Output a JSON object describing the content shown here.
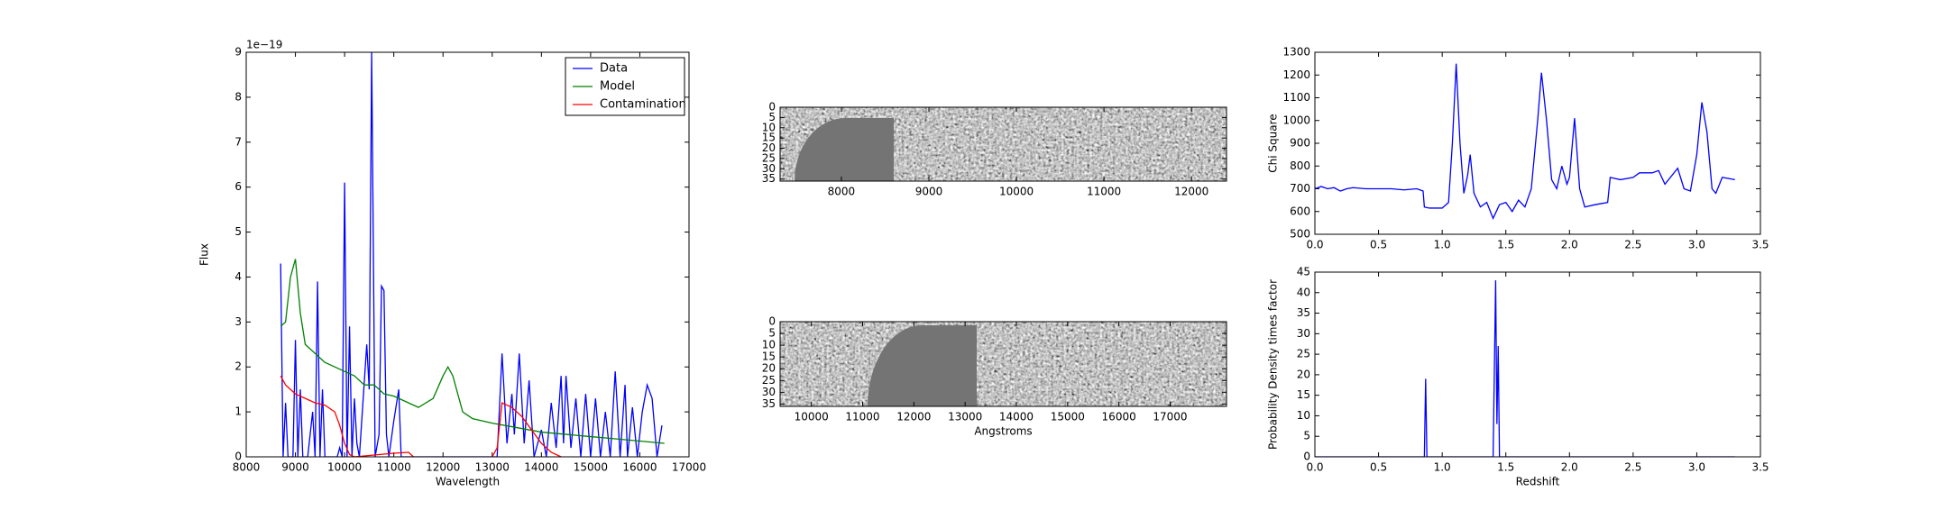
{
  "chart_data": [
    {
      "type": "line",
      "xlabel": "Wavelength",
      "ylabel": "Flux",
      "y_offset_label": "1e−19",
      "xlim": [
        8000,
        17000
      ],
      "xticks": [
        8000,
        9000,
        10000,
        11000,
        12000,
        13000,
        14000,
        15000,
        16000,
        17000
      ],
      "ylim": [
        0,
        9
      ],
      "yticks": [
        0,
        1,
        2,
        3,
        4,
        5,
        6,
        7,
        8,
        9
      ],
      "legend": "upper right",
      "series": [
        {
          "name": "Data",
          "color": "#0000ff",
          "x": [
            8700,
            8750,
            8800,
            8850,
            8950,
            9000,
            9050,
            9100,
            9150,
            9250,
            9350,
            9400,
            9450,
            9500,
            9550,
            9600,
            9850,
            9900,
            9950,
            10000,
            10050,
            10100,
            10150,
            10200,
            10250,
            10300,
            10450,
            10500,
            10550,
            10620,
            10700,
            10750,
            10800,
            10850,
            10900,
            11000,
            11100,
            11150,
            13100,
            13200,
            13300,
            13400,
            13450,
            13550,
            13650,
            13750,
            13850,
            14000,
            14100,
            14200,
            14300,
            14400,
            14450,
            14500,
            14600,
            14700,
            14800,
            14900,
            15000,
            15100,
            15200,
            15300,
            15400,
            15500,
            15600,
            15700,
            15750,
            15850,
            15950,
            16050,
            16150,
            16250,
            16350,
            16450
          ],
          "values": [
            4.3,
            0,
            1.2,
            0,
            0,
            2.6,
            0,
            1.5,
            0,
            0,
            1.0,
            0,
            3.9,
            0,
            1.5,
            0,
            0,
            0.2,
            0,
            6.1,
            0,
            2.9,
            0,
            1.3,
            0.3,
            0,
            2.5,
            1.5,
            9.0,
            0,
            0.5,
            3.8,
            3.7,
            0.5,
            0,
            0.8,
            1.5,
            0,
            0,
            2.3,
            0.3,
            1.4,
            0.5,
            2.3,
            0.3,
            1.7,
            0,
            0.6,
            0,
            1.2,
            0.2,
            1.8,
            0.3,
            1.8,
            0.2,
            1.3,
            0,
            1.4,
            0,
            1.3,
            0,
            1.0,
            0,
            1.9,
            0,
            1.6,
            0,
            1.1,
            0,
            1.0,
            1.6,
            1.3,
            0,
            0.7
          ]
        },
        {
          "name": "Model",
          "color": "#008000",
          "x": [
            8700,
            8800,
            8900,
            9000,
            9100,
            9200,
            9300,
            9400,
            9500,
            9600,
            9800,
            10000,
            10200,
            10400,
            10600,
            10800,
            11000,
            11300,
            11500,
            11800,
            12000,
            12100,
            12200,
            12400,
            12600,
            13000,
            13500,
            14000,
            14500,
            15000,
            15500,
            16000,
            16500
          ],
          "values": [
            2.9,
            3.0,
            4.0,
            4.4,
            3.2,
            2.5,
            2.4,
            2.3,
            2.2,
            2.1,
            2.0,
            1.9,
            1.8,
            1.6,
            1.6,
            1.4,
            1.35,
            1.2,
            1.1,
            1.3,
            1.8,
            2.0,
            1.8,
            1.0,
            0.85,
            0.75,
            0.65,
            0.55,
            0.5,
            0.45,
            0.4,
            0.35,
            0.3
          ]
        },
        {
          "name": "Contamination",
          "color": "#ff0000",
          "x": [
            8700,
            8800,
            9000,
            9200,
            9400,
            9600,
            9800,
            9900,
            10000,
            10100,
            10200,
            10700,
            11000,
            11300,
            11400,
            12000,
            13000,
            13100,
            13200,
            13400,
            13600,
            13800,
            14000,
            14200,
            14400
          ],
          "values": [
            1.8,
            1.6,
            1.4,
            1.3,
            1.2,
            1.15,
            1.0,
            0.7,
            0.3,
            0.05,
            0,
            0.05,
            0.08,
            0.1,
            0,
            null,
            0,
            0.2,
            1.2,
            1.1,
            0.9,
            0.6,
            0.3,
            0.1,
            0
          ]
        }
      ]
    },
    {
      "type": "image",
      "xlim": [
        7300,
        12400
      ],
      "xticks": [
        8000,
        9000,
        10000,
        11000,
        12000
      ],
      "ylim": [
        36,
        0
      ],
      "yticks": [
        0,
        5,
        10,
        15,
        20,
        25,
        30,
        35
      ]
    },
    {
      "type": "image",
      "xlabel": "Angstroms",
      "xlim": [
        9390,
        18100
      ],
      "xticks": [
        10000,
        11000,
        12000,
        13000,
        14000,
        15000,
        16000,
        17000
      ],
      "ylim": [
        36,
        0
      ],
      "yticks": [
        0,
        5,
        10,
        15,
        20,
        25,
        30,
        35
      ]
    },
    {
      "type": "line",
      "ylabel": "Chi Square",
      "xlim": [
        0,
        3.5
      ],
      "xticks": [
        {
          "value": 0,
          "label": "0.0"
        },
        0.5,
        {
          "value": 1,
          "label": "1.0"
        },
        1.5,
        {
          "value": 2,
          "label": "2.0"
        },
        2.5,
        {
          "value": 3,
          "label": "3.0"
        },
        3.5
      ],
      "ylim": [
        500,
        1300
      ],
      "yticks": [
        500,
        600,
        700,
        800,
        900,
        1000,
        1100,
        1200,
        1300
      ],
      "series": [
        {
          "color": "#0000ff",
          "x": [
            0,
            0.05,
            0.1,
            0.15,
            0.2,
            0.25,
            0.3,
            0.4,
            0.5,
            0.6,
            0.7,
            0.8,
            0.85,
            0.86,
            0.9,
            1.0,
            1.05,
            1.08,
            1.11,
            1.14,
            1.17,
            1.2,
            1.22,
            1.25,
            1.3,
            1.35,
            1.4,
            1.45,
            1.5,
            1.55,
            1.6,
            1.65,
            1.7,
            1.75,
            1.78,
            1.82,
            1.86,
            1.9,
            1.94,
            1.98,
            2.0,
            2.04,
            2.08,
            2.12,
            2.2,
            2.3,
            2.32,
            2.4,
            2.5,
            2.55,
            2.65,
            2.7,
            2.75,
            2.85,
            2.9,
            2.95,
            3.0,
            3.04,
            3.08,
            3.12,
            3.15,
            3.2,
            3.3
          ],
          "values": [
            700,
            710,
            700,
            705,
            690,
            700,
            705,
            700,
            700,
            700,
            695,
            700,
            690,
            620,
            615,
            615,
            640,
            900,
            1250,
            900,
            680,
            760,
            850,
            680,
            620,
            640,
            570,
            630,
            640,
            600,
            650,
            620,
            700,
            1000,
            1210,
            1000,
            740,
            700,
            800,
            720,
            750,
            1010,
            700,
            620,
            630,
            640,
            750,
            740,
            750,
            770,
            770,
            780,
            720,
            790,
            700,
            690,
            850,
            1080,
            950,
            700,
            680,
            750,
            740
          ]
        }
      ]
    },
    {
      "type": "line",
      "xlabel": "Redshift",
      "ylabel": "Probability Density times factor",
      "xlim": [
        0,
        3.5
      ],
      "xticks": [
        {
          "value": 0,
          "label": "0.0"
        },
        0.5,
        {
          "value": 1,
          "label": "1.0"
        },
        1.5,
        {
          "value": 2,
          "label": "2.0"
        },
        2.5,
        {
          "value": 3,
          "label": "3.0"
        },
        3.5
      ],
      "ylim": [
        0,
        45
      ],
      "yticks": [
        0,
        5,
        10,
        15,
        20,
        25,
        30,
        35,
        40,
        45
      ],
      "series": [
        {
          "color": "#0000ff",
          "x": [
            0,
            0.86,
            0.87,
            0.88,
            1.4,
            1.42,
            1.43,
            1.44,
            1.45,
            3.3
          ],
          "values": [
            0,
            0,
            19,
            0,
            0,
            43,
            8,
            27,
            0,
            0
          ]
        }
      ]
    }
  ]
}
